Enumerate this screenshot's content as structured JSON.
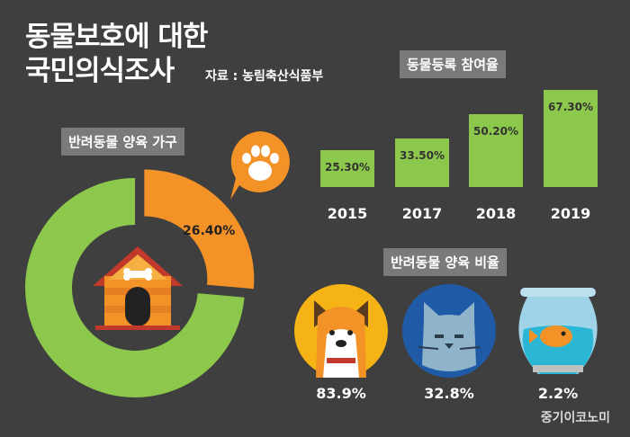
{
  "header": {
    "title_line1": "동물보호에 대한",
    "title_line2": "국민의식조사",
    "source": "자료 : 농림축산식품부"
  },
  "household": {
    "label": "반려동물 양육 가구",
    "percent": "26.40%",
    "fraction": 0.264
  },
  "registration": {
    "label": "동물등록 참여율",
    "bars": [
      {
        "year": "2015",
        "value": "25.30%",
        "v": 25.3
      },
      {
        "year": "2017",
        "value": "33.50%",
        "v": 33.5
      },
      {
        "year": "2018",
        "value": "50.20%",
        "v": 50.2
      },
      {
        "year": "2019",
        "value": "67.30%",
        "v": 67.3
      }
    ]
  },
  "ratio": {
    "label": "반려동물 양육 비율",
    "dog": "83.9%",
    "cat": "32.8%",
    "fish": "2.2%"
  },
  "brand": "중기이코노미",
  "colors": {
    "background": "#3f3f3f",
    "green": "#8cc84b",
    "orange": "#f39226",
    "label": "#7a7a7a"
  }
}
